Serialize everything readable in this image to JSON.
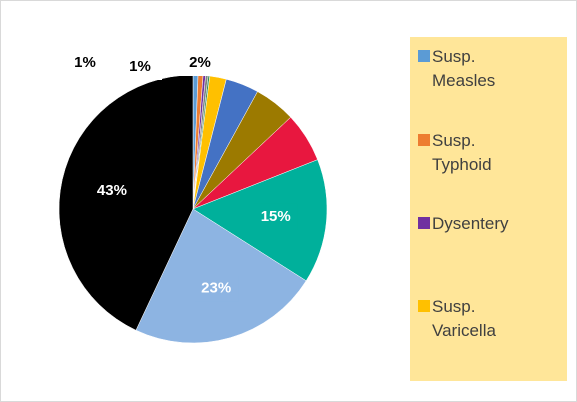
{
  "chart_data": {
    "type": "pie",
    "categories": [
      "Susp. Measles",
      "Susp. Typhoid",
      "Dysentery",
      null,
      null,
      "Susp. Varicella",
      null,
      null,
      null,
      null,
      null,
      null
    ],
    "values": [
      0.6,
      0.6,
      0.3,
      0.3,
      0.2,
      2,
      4,
      5,
      6,
      15,
      23,
      43
    ],
    "value_labels": [
      "1%",
      "1%",
      null,
      null,
      null,
      "2%",
      null,
      null,
      null,
      "15%",
      "23%",
      "43%"
    ],
    "colors": [
      "#5b9bd5",
      "#ed7d31",
      "#7030a0",
      "#7f7f7f",
      "#2e8b57",
      "#ffc000",
      "#4472c4",
      "#9c7a00",
      "#e8173f",
      "#00b09b",
      "#8db4e2",
      "#000000"
    ]
  }
}
